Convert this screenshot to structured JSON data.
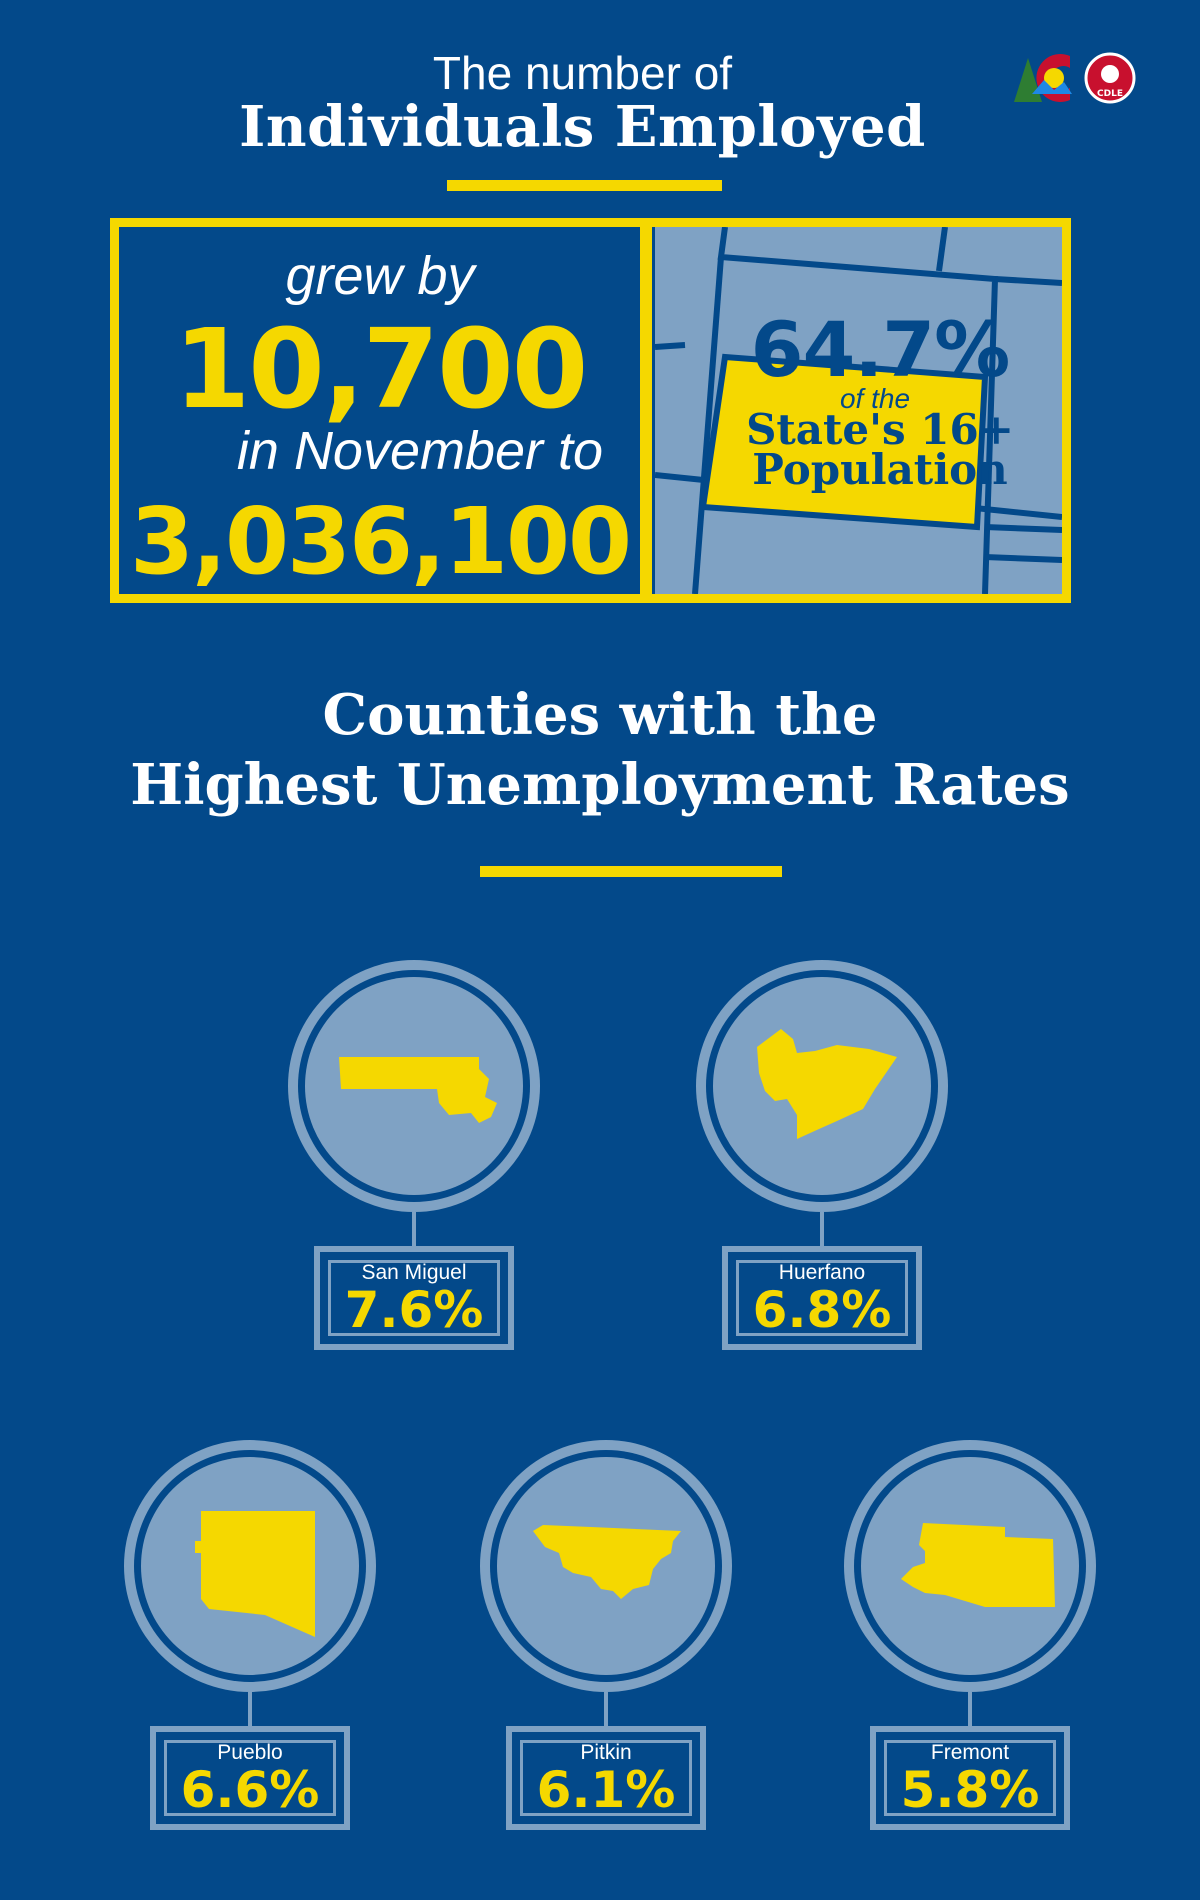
{
  "header": {
    "line1": "The number of",
    "line2": "Individuals Employed"
  },
  "logos": {
    "colorado": "colorado-c-logo",
    "cdle": "CDLE"
  },
  "employment": {
    "grew_by": "grew by",
    "increase": "10,700",
    "in_month_to": "in November to",
    "total": "3,036,100",
    "share_pct": "64.7%",
    "share_of_the": "of the",
    "share_line1": "State's 16+",
    "share_line2": "Population"
  },
  "counties_section": {
    "title_line1": "Counties with the",
    "title_line2": "Highest Unemployment Rates"
  },
  "counties": [
    {
      "name": "San Miguel",
      "rate": "7.6%"
    },
    {
      "name": "Huerfano",
      "rate": "6.8%"
    },
    {
      "name": "Pueblo",
      "rate": "6.6%"
    },
    {
      "name": "Pitkin",
      "rate": "6.1%"
    },
    {
      "name": "Fremont",
      "rate": "5.8%"
    }
  ],
  "colors": {
    "background": "#03498a",
    "accent_yellow": "#f5d800",
    "light_blue": "#7fa2c4"
  }
}
